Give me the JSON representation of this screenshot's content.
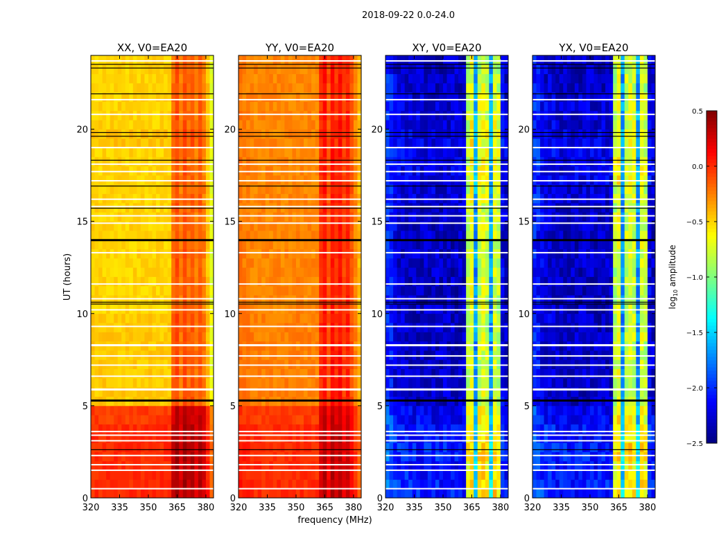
{
  "chart_data": {
    "type": "heatmap",
    "title": "2018-09-22 0.0-24.0",
    "xlabel": "frequency (MHz)",
    "ylabel": "UT (hours)",
    "xlim": [
      320,
      384
    ],
    "ylim": [
      0,
      24
    ],
    "xticks": [
      320,
      335,
      350,
      365,
      380
    ],
    "yticks": [
      0,
      5,
      10,
      15,
      20
    ],
    "colorbar": {
      "label_main": "log",
      "label_sub": "10",
      "label_rest": " amplitude",
      "range": [
        -2.5,
        0.5
      ],
      "ticks": [
        0.5,
        0.0,
        -0.5,
        -1.0,
        -1.5,
        -2.0,
        -2.5
      ],
      "tick_labels": [
        "0.5",
        "0.0",
        "−0.5",
        "−1.0",
        "−1.5",
        "−2.0",
        "−2.5"
      ],
      "colormap": "jet"
    },
    "freq_bin_edges_MHz": [
      320,
      384
    ],
    "freq_bins": 32,
    "time_bins": 48,
    "flagged_hours_white": [
      0.5,
      1.5,
      1.8,
      2.3,
      3.1,
      3.4,
      3.6,
      5.9,
      6.6,
      7.2,
      7.7,
      8.3,
      9.3,
      10.2,
      10.8,
      11.6,
      13.3,
      14.9,
      15.3,
      15.8,
      16.2,
      17.2,
      17.7,
      18.1,
      19.0,
      20.8,
      21.6,
      23.7
    ],
    "flagged_hours_black": [
      2.6,
      5.3,
      10.5,
      10.6,
      14.0,
      15.7,
      16.9,
      18.3,
      19.6,
      19.8,
      21.9,
      23.3,
      23.5
    ],
    "panels": [
      {
        "title": "XX, V0=EA20",
        "freq_profile": [
          -0.05,
          -0.05,
          -0.05,
          -0.05,
          -0.05,
          -0.05,
          -0.05,
          -0.05,
          -0.05,
          -0.05,
          -0.05,
          -0.05,
          -0.05,
          -0.05,
          -0.05,
          -0.05,
          -0.05,
          -0.05,
          -0.05,
          -0.05,
          -0.05,
          0.25,
          0.35,
          0.2,
          0.35,
          0.25,
          0.3,
          0.2,
          0.3,
          0.2,
          0.0,
          -0.25
        ],
        "time_profile": [
          0.05,
          0.05,
          0.05,
          0.05,
          0.0,
          -0.42,
          -0.42,
          -0.42,
          -0.42,
          -0.42,
          -0.45,
          -0.45,
          -0.45,
          -0.45,
          -0.45,
          -0.45,
          -0.45,
          -0.45,
          -0.45,
          -0.4,
          -0.45,
          -0.45,
          -0.45,
          -0.45
        ]
      },
      {
        "title": "YY, V0=EA20",
        "freq_profile": [
          0.0,
          -0.02,
          -0.03,
          -0.04,
          -0.05,
          -0.05,
          -0.05,
          -0.05,
          -0.05,
          -0.05,
          -0.05,
          -0.05,
          -0.05,
          -0.05,
          -0.05,
          -0.05,
          -0.05,
          -0.05,
          -0.05,
          -0.05,
          -0.05,
          0.2,
          0.3,
          0.1,
          0.3,
          0.2,
          0.3,
          0.15,
          0.25,
          0.1,
          -0.05,
          -0.2
        ],
        "time_profile": [
          0.05,
          0.05,
          0.05,
          0.05,
          0.0,
          -0.2,
          -0.2,
          -0.2,
          -0.2,
          -0.2,
          -0.22,
          -0.22,
          -0.22,
          -0.22,
          -0.22,
          -0.22,
          -0.22,
          -0.22,
          -0.22,
          -0.22,
          -0.22,
          -0.22,
          -0.22,
          -0.22
        ]
      },
      {
        "title": "XY, V0=EA20",
        "freq_profile": [
          -2.05,
          -2.1,
          -2.2,
          -2.25,
          -2.25,
          -2.25,
          -2.3,
          -2.3,
          -2.3,
          -2.3,
          -2.3,
          -2.3,
          -2.3,
          -2.3,
          -2.3,
          -2.3,
          -2.3,
          -2.3,
          -2.3,
          -2.3,
          -2.3,
          -0.85,
          -0.7,
          -1.7,
          -0.8,
          -0.75,
          -0.8,
          -1.7,
          -0.75,
          -0.85,
          -2.2,
          -2.3
        ],
        "time_profile": [
          0.25,
          0.2,
          0.25,
          0.2,
          0.15,
          0.0,
          0.0,
          0.0,
          0.0,
          0.0,
          0.0,
          0.0,
          0.0,
          0.0,
          0.0,
          0.0,
          0.05,
          0.1,
          0.1,
          0.1,
          0.05,
          0.05,
          0.0,
          0.0
        ]
      },
      {
        "title": "YX, V0=EA20",
        "freq_profile": [
          -2.05,
          -2.1,
          -2.2,
          -2.25,
          -2.25,
          -2.25,
          -2.3,
          -2.3,
          -2.3,
          -2.3,
          -2.3,
          -2.3,
          -2.3,
          -2.3,
          -2.3,
          -2.3,
          -2.3,
          -2.3,
          -2.3,
          -2.3,
          -2.3,
          -0.85,
          -0.7,
          -1.7,
          -0.8,
          -0.75,
          -0.8,
          -1.7,
          -0.75,
          -0.85,
          -2.2,
          -2.3
        ],
        "time_profile": [
          0.25,
          0.2,
          0.25,
          0.2,
          0.15,
          0.0,
          0.0,
          0.0,
          0.0,
          0.0,
          0.0,
          0.0,
          0.0,
          0.0,
          0.0,
          0.0,
          0.05,
          0.1,
          0.1,
          0.1,
          0.05,
          0.05,
          0.0,
          0.0
        ]
      }
    ]
  }
}
